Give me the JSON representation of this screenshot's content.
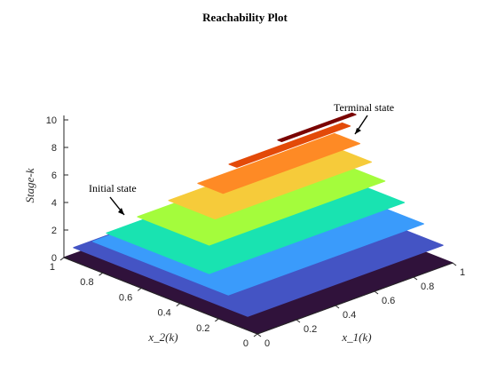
{
  "chart_data": {
    "type": "surface-stack",
    "title": "Reachability Plot",
    "xlabel": "x_1(k)",
    "ylabel": "x_2(k)",
    "zlabel": "Stage-k",
    "x_ticks": [
      "0",
      "0.2",
      "0.4",
      "0.6",
      "0.8",
      "1"
    ],
    "y_ticks": [
      "0",
      "0.2",
      "0.4",
      "0.6",
      "0.8",
      "1"
    ],
    "z_ticks": [
      "0",
      "2",
      "4",
      "6",
      "8",
      "10"
    ],
    "xlim": [
      0,
      1
    ],
    "ylim": [
      0,
      1
    ],
    "zlim": [
      0,
      10
    ],
    "colormap": "turbo",
    "grid": false,
    "layers": [
      {
        "stage": 0,
        "color": "#30123b",
        "x_range": [
          0,
          1
        ],
        "y_range": [
          0,
          1
        ]
      },
      {
        "stage": 1,
        "color": "#4454c4",
        "x_range": [
          0,
          1
        ],
        "y_range": [
          0.05,
          0.95
        ]
      },
      {
        "stage": 2,
        "color": "#3a9bfb",
        "x_range": [
          0,
          1
        ],
        "y_range": [
          0.15,
          0.85
        ]
      },
      {
        "stage": 3,
        "color": "#19e3b1",
        "x_range": [
          0,
          1
        ],
        "y_range": [
          0.25,
          0.78
        ]
      },
      {
        "stage": 4,
        "color": "#a4fc3c",
        "x_range": [
          0.1,
          1
        ],
        "y_range": [
          0.35,
          0.72
        ]
      },
      {
        "stage": 5,
        "color": "#f6cb3a",
        "x_range": [
          0.2,
          1
        ],
        "y_range": [
          0.42,
          0.66
        ]
      },
      {
        "stage": 6,
        "color": "#fe8a25",
        "x_range": [
          0.3,
          1
        ],
        "y_range": [
          0.48,
          0.61
        ]
      },
      {
        "stage": 7,
        "color": "#e34a09",
        "x_range": [
          0.42,
          1
        ],
        "y_range": [
          0.53,
          0.57
        ]
      },
      {
        "stage": 8,
        "color": "#7a0403",
        "x_range": [
          0.62,
          1
        ],
        "y_range": [
          0.5,
          0.52
        ]
      }
    ],
    "annotations": [
      {
        "text": "Initial state",
        "points_to": "stage 0"
      },
      {
        "text": "Terminal state",
        "points_to": "stage 8"
      }
    ]
  }
}
